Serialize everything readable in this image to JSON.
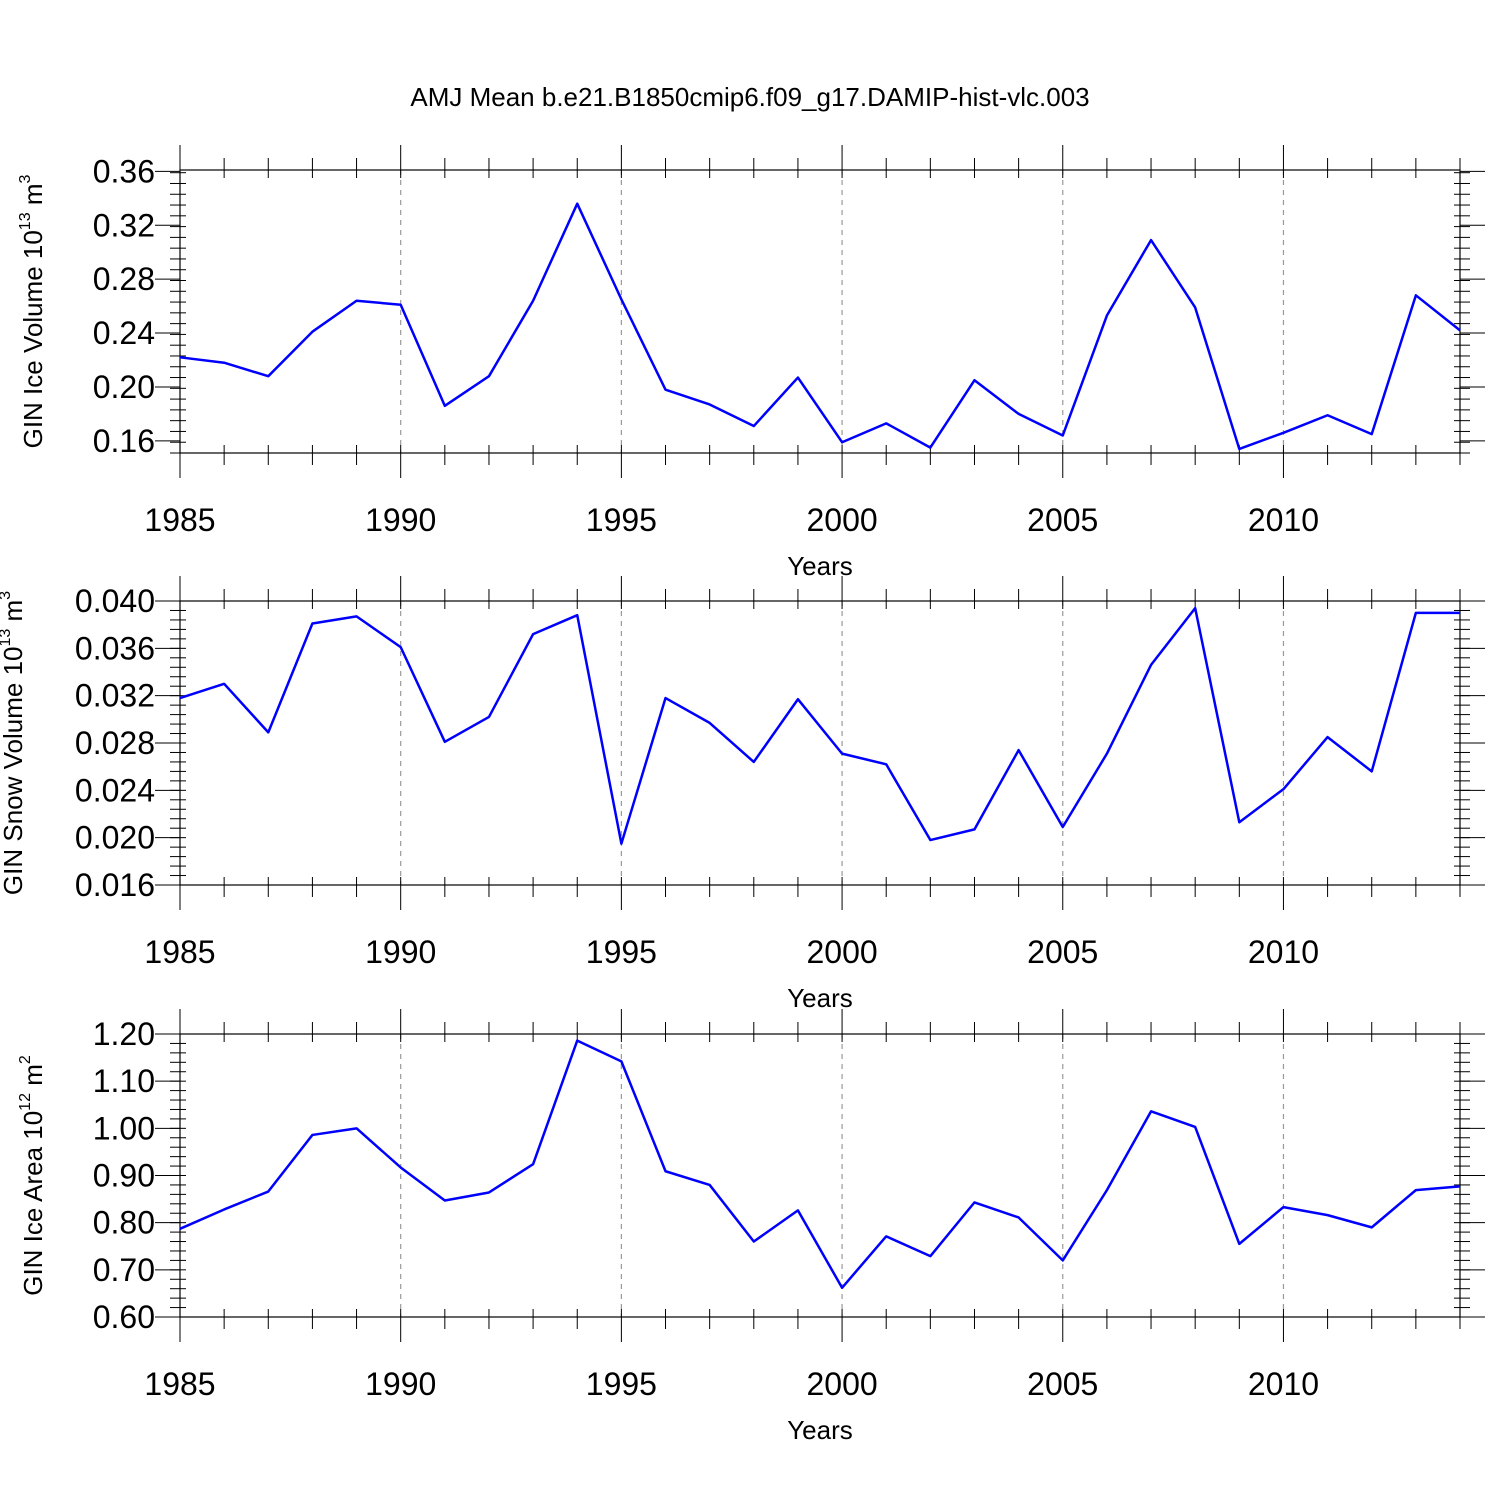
{
  "title": "AMJ Mean b.e21.B1850cmip6.f09_g17.DAMIP-hist-vlc.003",
  "colors": {
    "series": "#0000ff",
    "grid": "#999999",
    "axis": "#000000"
  },
  "chart_data": [
    {
      "type": "line",
      "ylabel": "GIN Ice Volume 10",
      "ylabel_exp": "13",
      "ylabel_unit": "m",
      "ylabel_unit_exp": "3",
      "xlabel": "Years",
      "xlim": [
        1985,
        2014
      ],
      "ylim": [
        0.151,
        0.361
      ],
      "x_ticks": [
        1985,
        1990,
        1995,
        2000,
        2005,
        2010
      ],
      "x_tick_labels": [
        "1985",
        "1990",
        "1995",
        "2000",
        "2005",
        "2010"
      ],
      "y_ticks": [
        0.16,
        0.2,
        0.24,
        0.28,
        0.32,
        0.36
      ],
      "y_tick_labels": [
        "0.16",
        "0.20",
        "0.24",
        "0.28",
        "0.32",
        "0.36"
      ],
      "y_minor_step": 0.008,
      "grid_x": true,
      "x": [
        1985,
        1986,
        1987,
        1988,
        1989,
        1990,
        1991,
        1992,
        1993,
        1994,
        1995,
        1996,
        1997,
        1998,
        1999,
        2000,
        2001,
        2002,
        2003,
        2004,
        2005,
        2006,
        2007,
        2008,
        2009,
        2010,
        2011,
        2012,
        2013,
        2014
      ],
      "series": [
        {
          "values": [
            0.222,
            0.218,
            0.208,
            0.241,
            0.264,
            0.261,
            0.186,
            0.208,
            0.264,
            0.336,
            0.265,
            0.198,
            0.187,
            0.171,
            0.207,
            0.159,
            0.173,
            0.155,
            0.205,
            0.18,
            0.164,
            0.253,
            0.309,
            0.259,
            0.154,
            0.166,
            0.179,
            0.165,
            0.268,
            0.242
          ]
        }
      ]
    },
    {
      "type": "line",
      "ylabel": "GIN Snow Volume 10",
      "ylabel_exp": "13",
      "ylabel_unit": "m",
      "ylabel_unit_exp": "3",
      "xlabel": "Years",
      "xlim": [
        1985,
        2014
      ],
      "ylim": [
        0.016,
        0.04
      ],
      "x_ticks": [
        1985,
        1990,
        1995,
        2000,
        2005,
        2010
      ],
      "x_tick_labels": [
        "1985",
        "1990",
        "1995",
        "2000",
        "2005",
        "2010"
      ],
      "y_ticks": [
        0.016,
        0.02,
        0.024,
        0.028,
        0.032,
        0.036,
        0.04
      ],
      "y_tick_labels": [
        "0.016",
        "0.020",
        "0.024",
        "0.028",
        "0.032",
        "0.036",
        "0.040"
      ],
      "y_minor_step": 0.0008,
      "grid_x": true,
      "x": [
        1985,
        1986,
        1987,
        1988,
        1989,
        1990,
        1991,
        1992,
        1993,
        1994,
        1995,
        1996,
        1997,
        1998,
        1999,
        2000,
        2001,
        2002,
        2003,
        2004,
        2005,
        2006,
        2007,
        2008,
        2009,
        2010,
        2011,
        2012,
        2013,
        2014
      ],
      "series": [
        {
          "values": [
            0.0318,
            0.033,
            0.0289,
            0.0381,
            0.0387,
            0.0361,
            0.0281,
            0.0302,
            0.0372,
            0.0388,
            0.0195,
            0.0318,
            0.0297,
            0.0264,
            0.0317,
            0.0271,
            0.0262,
            0.0198,
            0.0207,
            0.0274,
            0.0209,
            0.0271,
            0.0346,
            0.0394,
            0.0213,
            0.0241,
            0.0285,
            0.0256,
            0.039,
            0.039
          ]
        }
      ]
    },
    {
      "type": "line",
      "ylabel": "GIN Ice Area 10",
      "ylabel_exp": "12",
      "ylabel_unit": "m",
      "ylabel_unit_exp": "2",
      "xlabel": "Years",
      "xlim": [
        1985,
        2014
      ],
      "ylim": [
        0.6,
        1.2
      ],
      "x_ticks": [
        1985,
        1990,
        1995,
        2000,
        2005,
        2010
      ],
      "x_tick_labels": [
        "1985",
        "1990",
        "1995",
        "2000",
        "2005",
        "2010"
      ],
      "y_ticks": [
        0.6,
        0.7,
        0.8,
        0.9,
        1.0,
        1.1,
        1.2
      ],
      "y_tick_labels": [
        "0.60",
        "0.70",
        "0.80",
        "0.90",
        "1.00",
        "1.10",
        "1.20"
      ],
      "y_minor_step": 0.02,
      "grid_x": true,
      "x": [
        1985,
        1986,
        1987,
        1988,
        1989,
        1990,
        1991,
        1992,
        1993,
        1994,
        1995,
        1996,
        1997,
        1998,
        1999,
        2000,
        2001,
        2002,
        2003,
        2004,
        2005,
        2006,
        2007,
        2008,
        2009,
        2010,
        2011,
        2012,
        2013,
        2014
      ],
      "series": [
        {
          "values": [
            0.787,
            0.828,
            0.866,
            0.986,
            1.0,
            0.917,
            0.847,
            0.864,
            0.924,
            1.186,
            1.142,
            0.909,
            0.88,
            0.76,
            0.826,
            0.662,
            0.771,
            0.729,
            0.843,
            0.811,
            0.72,
            0.869,
            1.036,
            1.003,
            0.755,
            0.833,
            0.816,
            0.79,
            0.869,
            0.877
          ]
        }
      ]
    }
  ]
}
